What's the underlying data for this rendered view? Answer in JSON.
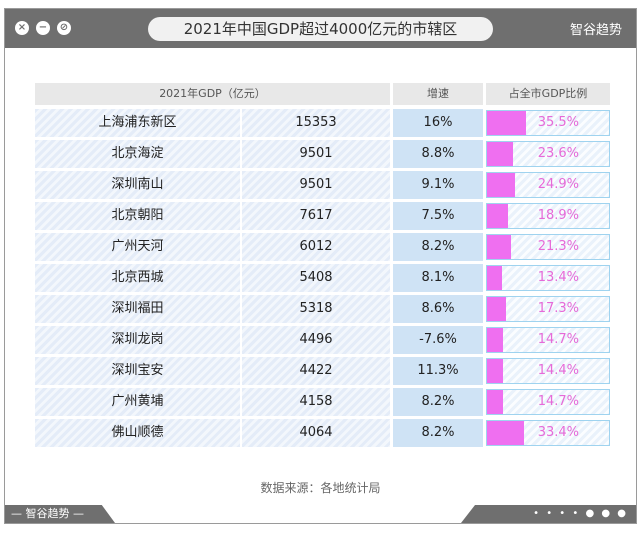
{
  "window": {
    "title": "2021年中国GDP超过4000亿元的市辖区",
    "brand": "智谷趋势",
    "footer_brand": "— 智谷趋势 —",
    "footer_dots": "• • • • ● ● ●"
  },
  "source": "数据来源：各地统计局",
  "colors": {
    "share_bar": "#ef6ff0",
    "growth_bg": "#cfe3f5",
    "header_bg": "#e8e8e8"
  },
  "chart_data": {
    "type": "table",
    "headers": {
      "gdp": "2021年GDP（亿元）",
      "growth": "增速",
      "share": "占全市GDP比例"
    },
    "rows": [
      {
        "name": "上海浦东新区",
        "gdp": "15353",
        "growth": "16%",
        "share": "35.5%",
        "share_value": 35.5
      },
      {
        "name": "北京海淀",
        "gdp": "9501",
        "growth": "8.8%",
        "share": "23.6%",
        "share_value": 23.6
      },
      {
        "name": "深圳南山",
        "gdp": "9501",
        "growth": "9.1%",
        "share": "24.9%",
        "share_value": 24.9
      },
      {
        "name": "北京朝阳",
        "gdp": "7617",
        "growth": "7.5%",
        "share": "18.9%",
        "share_value": 18.9
      },
      {
        "name": "广州天河",
        "gdp": "6012",
        "growth": "8.2%",
        "share": "21.3%",
        "share_value": 21.3
      },
      {
        "name": "北京西城",
        "gdp": "5408",
        "growth": "8.1%",
        "share": "13.4%",
        "share_value": 13.4
      },
      {
        "name": "深圳福田",
        "gdp": "5318",
        "growth": "8.6%",
        "share": "17.3%",
        "share_value": 17.3
      },
      {
        "name": "深圳龙岗",
        "gdp": "4496",
        "growth": "-7.6%",
        "share": "14.7%",
        "share_value": 14.7
      },
      {
        "name": "深圳宝安",
        "gdp": "4422",
        "growth": "11.3%",
        "share": "14.4%",
        "share_value": 14.4
      },
      {
        "name": "广州黄埔",
        "gdp": "4158",
        "growth": "8.2%",
        "share": "14.7%",
        "share_value": 14.7
      },
      {
        "name": "佛山顺德",
        "gdp": "4064",
        "growth": "8.2%",
        "share": "33.4%",
        "share_value": 33.4
      }
    ]
  }
}
